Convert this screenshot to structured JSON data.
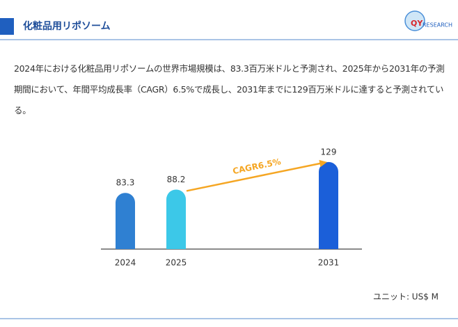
{
  "header": {
    "title": "化粧品用リポソーム",
    "logo_mark": "QY",
    "logo_text": "RESEARCH"
  },
  "description": "2024年における化粧品用リポソームの世界市場規模は、83.3百万米ドルと予測され、2025年から2031年の予測期間において、年間平均成長率（CAGR）6.5%で成長し、2031年までに129百万米ドルに達すると予測されている。",
  "chart_data": {
    "type": "bar",
    "categories": [
      "2024",
      "2025",
      "2031"
    ],
    "values": [
      83.3,
      88.2,
      129
    ],
    "colors": [
      "#2f80d2",
      "#3cc8e8",
      "#1b5fd9"
    ],
    "annotation": "CAGR6.5%",
    "annotation_color": "#f5a623",
    "unit_label": "ユニット: US$ M"
  }
}
